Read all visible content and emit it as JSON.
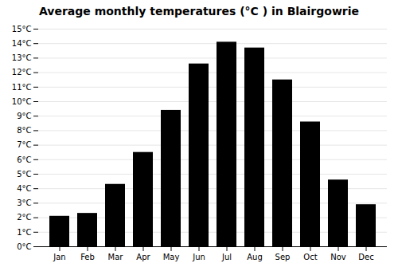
{
  "chart_data": {
    "type": "bar",
    "title": "Average monthly temperatures (°C ) in Blairgowrie",
    "categories": [
      "Jan",
      "Feb",
      "Mar",
      "Apr",
      "May",
      "Jun",
      "Jul",
      "Aug",
      "Sep",
      "Oct",
      "Nov",
      "Dec"
    ],
    "values": [
      2.1,
      2.3,
      4.3,
      6.5,
      9.4,
      12.6,
      14.1,
      13.7,
      11.5,
      8.6,
      4.6,
      2.9
    ],
    "ylim": [
      0,
      15
    ],
    "yticks": [
      {
        "value": 0,
        "label": "0°C"
      },
      {
        "value": 1,
        "label": "1°C"
      },
      {
        "value": 2,
        "label": "2°C"
      },
      {
        "value": 3,
        "label": "3°C"
      },
      {
        "value": 4,
        "label": "4°C"
      },
      {
        "value": 5,
        "label": "5°C"
      },
      {
        "value": 6,
        "label": "6°C"
      },
      {
        "value": 7,
        "label": "7°C"
      },
      {
        "value": 8,
        "label": "8°C"
      },
      {
        "value": 9,
        "label": "9°C"
      },
      {
        "value": 10,
        "label": "10°C"
      },
      {
        "value": 11,
        "label": "11°C"
      },
      {
        "value": 12,
        "label": "12°C"
      },
      {
        "value": 13,
        "label": "13°C"
      },
      {
        "value": 14,
        "label": "14°C"
      },
      {
        "value": 15,
        "label": "15°C"
      }
    ],
    "grid": true
  }
}
